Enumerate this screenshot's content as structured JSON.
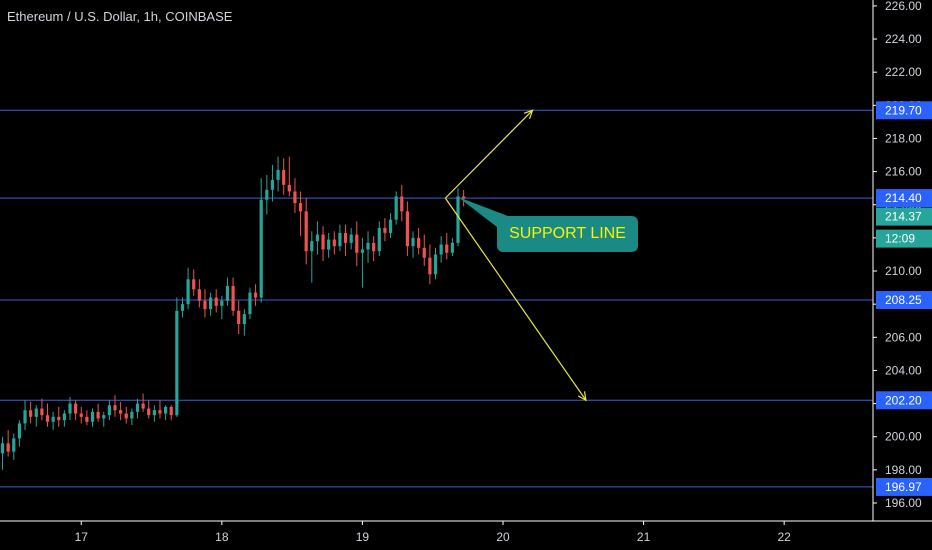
{
  "header": {
    "title": "Ethereum / U.S. Dollar, 1h, COINBASE"
  },
  "annotation": {
    "text": "SUPPORT LINE",
    "color": "#f5f500",
    "bg": "#1b8a84"
  },
  "chart_data": {
    "type": "candlestick",
    "title": "Ethereum / U.S. Dollar, 1h, COINBASE",
    "x_ticks": [
      "17",
      "18",
      "19",
      "20",
      "21",
      "22"
    ],
    "y_ticks": [
      196,
      198,
      200,
      202,
      204,
      206,
      208,
      210,
      212,
      214,
      216,
      218,
      220,
      222,
      224,
      226
    ],
    "y_tick_labels": [
      "196.00",
      "198.00",
      "200.00",
      "202.00",
      "204.00",
      "206.00",
      "208.00",
      "210.00",
      "212.00",
      "214.00",
      "216.00",
      "218.00",
      "220.00",
      "222.00",
      "224.00",
      "226.00"
    ],
    "ylim": [
      195.2,
      226.4
    ],
    "grid": false,
    "colors": {
      "up": "#26a69a",
      "down": "#ef5350",
      "hline": "#3d5fd6",
      "arrow": "#e8e83a",
      "badge_line": "#2962ff",
      "badge_last": "#26a69a"
    },
    "horizontal_lines": [
      {
        "value": 219.7,
        "label": "219.70"
      },
      {
        "value": 214.4,
        "label": "214.40"
      },
      {
        "value": 208.25,
        "label": "208.25"
      },
      {
        "value": 202.2,
        "label": "202.20"
      },
      {
        "value": 196.97,
        "label": "196.97"
      }
    ],
    "last_price": {
      "value": 214.37,
      "label": "214.37",
      "countdown": "12:09"
    },
    "arrows": [
      {
        "from": [
          19.59,
          214.4
        ],
        "to": [
          20.21,
          219.7
        ]
      },
      {
        "from": [
          19.59,
          214.4
        ],
        "to": [
          20.59,
          202.2
        ]
      }
    ],
    "candles": [
      [
        16.0,
        201.0,
        202.2,
        200.0,
        200.6
      ],
      [
        16.04,
        200.6,
        201.0,
        199.3,
        199.8
      ],
      [
        16.08,
        199.8,
        200.4,
        199.0,
        200.2
      ],
      [
        16.12,
        200.2,
        200.8,
        199.2,
        199.5
      ],
      [
        16.16,
        199.5,
        200.6,
        199.2,
        200.3
      ],
      [
        16.2,
        200.3,
        201.1,
        199.6,
        199.9
      ],
      [
        16.24,
        199.9,
        200.9,
        199.6,
        200.7
      ],
      [
        16.28,
        200.7,
        203.3,
        200.2,
        202.0
      ],
      [
        16.32,
        202.0,
        203.0,
        200.6,
        201.0
      ],
      [
        16.36,
        201.0,
        201.8,
        199.8,
        200.3
      ],
      [
        16.4,
        200.3,
        200.9,
        198.2,
        199.0
      ],
      [
        16.44,
        199.0,
        200.0,
        198.0,
        199.6
      ],
      [
        16.48,
        199.6,
        200.4,
        198.8,
        199.1
      ],
      [
        16.52,
        199.1,
        200.2,
        198.6,
        199.9
      ],
      [
        16.56,
        199.9,
        201.0,
        199.4,
        200.8
      ],
      [
        16.6,
        200.8,
        202.2,
        200.4,
        201.6
      ],
      [
        16.64,
        201.6,
        202.1,
        200.8,
        201.2
      ],
      [
        16.68,
        201.2,
        201.9,
        200.6,
        201.7
      ],
      [
        16.72,
        201.7,
        202.3,
        201.0,
        201.3
      ],
      [
        16.76,
        201.3,
        202.0,
        200.6,
        200.9
      ],
      [
        16.8,
        200.9,
        201.5,
        200.4,
        201.2
      ],
      [
        16.84,
        201.2,
        201.8,
        200.6,
        201.0
      ],
      [
        16.88,
        201.0,
        201.6,
        200.6,
        201.4
      ],
      [
        16.92,
        201.4,
        202.4,
        201.0,
        202.0
      ],
      [
        16.96,
        202.0,
        202.2,
        201.0,
        201.4
      ],
      [
        17.0,
        201.4,
        201.8,
        200.8,
        201.2
      ],
      [
        17.04,
        201.2,
        201.6,
        200.7,
        200.9
      ],
      [
        17.08,
        200.9,
        201.7,
        200.6,
        201.5
      ],
      [
        17.12,
        201.5,
        202.0,
        200.9,
        201.1
      ],
      [
        17.16,
        201.1,
        201.5,
        200.6,
        201.3
      ],
      [
        17.2,
        201.3,
        202.2,
        201.0,
        201.9
      ],
      [
        17.24,
        201.9,
        202.5,
        201.2,
        201.6
      ],
      [
        17.28,
        201.6,
        202.1,
        201.0,
        201.4
      ],
      [
        17.32,
        201.4,
        201.8,
        200.8,
        201.1
      ],
      [
        17.36,
        201.1,
        201.7,
        200.7,
        201.5
      ],
      [
        17.4,
        201.5,
        202.3,
        201.1,
        202.0
      ],
      [
        17.44,
        202.0,
        202.6,
        201.5,
        201.7
      ],
      [
        17.48,
        201.7,
        202.2,
        201.1,
        201.3
      ],
      [
        17.52,
        201.3,
        201.9,
        200.9,
        201.6
      ],
      [
        17.56,
        201.6,
        202.2,
        201.1,
        201.4
      ],
      [
        17.6,
        201.4,
        201.9,
        201.0,
        201.8
      ],
      [
        17.64,
        201.8,
        201.9,
        201.0,
        201.3
      ],
      [
        17.68,
        201.3,
        208.4,
        201.2,
        207.6
      ],
      [
        17.72,
        207.6,
        208.4,
        207.2,
        208.0
      ],
      [
        17.76,
        208.0,
        210.2,
        207.7,
        209.5
      ],
      [
        17.8,
        209.5,
        210.1,
        208.5,
        208.9
      ],
      [
        17.84,
        208.9,
        209.5,
        207.8,
        208.2
      ],
      [
        17.88,
        208.2,
        208.9,
        207.2,
        207.7
      ],
      [
        17.92,
        207.7,
        208.7,
        207.3,
        208.4
      ],
      [
        17.96,
        208.4,
        208.9,
        207.5,
        207.9
      ],
      [
        18.0,
        207.9,
        208.5,
        207.1,
        208.2
      ],
      [
        18.04,
        208.2,
        209.6,
        207.9,
        209.1
      ],
      [
        18.08,
        209.1,
        209.6,
        207.3,
        207.6
      ],
      [
        18.12,
        207.6,
        208.2,
        206.2,
        206.8
      ],
      [
        18.16,
        206.8,
        207.7,
        206.1,
        207.4
      ],
      [
        18.2,
        207.4,
        209.0,
        207.1,
        208.7
      ],
      [
        18.24,
        208.7,
        209.2,
        207.9,
        208.4
      ],
      [
        18.28,
        208.4,
        215.6,
        208.1,
        214.3
      ],
      [
        18.32,
        214.3,
        215.8,
        213.4,
        214.9
      ],
      [
        18.36,
        214.9,
        216.4,
        214.2,
        215.5
      ],
      [
        18.4,
        215.5,
        216.9,
        214.8,
        216.1
      ],
      [
        18.44,
        216.1,
        216.8,
        214.6,
        215.2
      ],
      [
        18.48,
        215.2,
        216.9,
        214.5,
        214.8
      ],
      [
        18.52,
        214.8,
        215.6,
        213.5,
        214.1
      ],
      [
        18.56,
        214.1,
        214.8,
        212.1,
        213.6
      ],
      [
        18.6,
        213.6,
        214.4,
        210.4,
        211.2
      ],
      [
        18.64,
        211.2,
        212.4,
        209.3,
        211.8
      ],
      [
        18.68,
        211.8,
        213.0,
        211.0,
        212.2
      ],
      [
        18.72,
        212.2,
        212.7,
        210.6,
        211.3
      ],
      [
        18.76,
        211.3,
        212.3,
        210.8,
        211.9
      ],
      [
        18.8,
        211.9,
        212.4,
        211.0,
        211.5
      ],
      [
        18.84,
        211.5,
        212.8,
        211.2,
        212.3
      ],
      [
        18.88,
        212.3,
        212.8,
        210.9,
        211.7
      ],
      [
        18.92,
        211.7,
        212.6,
        211.3,
        212.2
      ],
      [
        18.96,
        212.2,
        213.0,
        210.3,
        211.1
      ],
      [
        19.0,
        211.1,
        212.0,
        209.0,
        211.3
      ],
      [
        19.04,
        211.3,
        212.4,
        210.5,
        211.7
      ],
      [
        19.08,
        211.7,
        212.1,
        210.6,
        211.2
      ],
      [
        19.12,
        211.2,
        213.0,
        210.9,
        212.6
      ],
      [
        19.16,
        212.6,
        213.2,
        211.8,
        212.3
      ],
      [
        19.2,
        212.3,
        213.5,
        212.0,
        213.1
      ],
      [
        19.24,
        213.1,
        214.8,
        212.8,
        214.5
      ],
      [
        19.28,
        214.5,
        215.2,
        213.0,
        213.6
      ],
      [
        19.32,
        213.6,
        214.2,
        210.9,
        211.5
      ],
      [
        19.36,
        211.5,
        212.4,
        210.8,
        212.0
      ],
      [
        19.4,
        212.0,
        212.6,
        211.0,
        211.4
      ],
      [
        19.44,
        211.4,
        212.2,
        210.3,
        210.8
      ],
      [
        19.48,
        210.8,
        211.6,
        209.2,
        209.8
      ],
      [
        19.52,
        209.8,
        211.4,
        209.5,
        211.0
      ],
      [
        19.56,
        211.0,
        212.1,
        210.5,
        211.6
      ],
      [
        19.6,
        211.6,
        212.3,
        210.7,
        211.1
      ],
      [
        19.64,
        211.1,
        212.0,
        210.9,
        211.7
      ],
      [
        19.68,
        211.7,
        215.0,
        211.5,
        214.5
      ],
      [
        19.72,
        214.5,
        214.9,
        213.9,
        214.37
      ]
    ]
  }
}
